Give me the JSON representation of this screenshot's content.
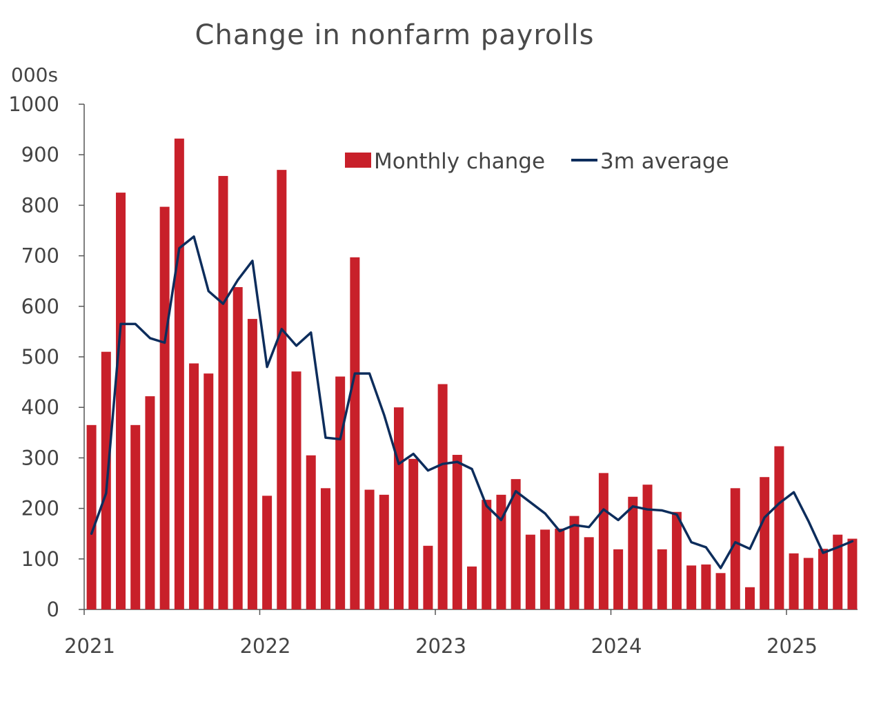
{
  "chart_data": {
    "type": "bar",
    "title": "Change in nonfarm payrolls",
    "unit_label": "000s",
    "ylim": [
      0,
      1000
    ],
    "y_ticks": [
      0,
      100,
      200,
      300,
      400,
      500,
      600,
      700,
      800,
      900,
      1000
    ],
    "x_ticks": [
      "2021",
      "2022",
      "2023",
      "2024",
      "2025"
    ],
    "legend": {
      "placement": "top-right",
      "entries": [
        "Monthly change",
        "3m average"
      ]
    },
    "colors": {
      "bars": "#c8202a",
      "line": "#0d2d5c",
      "axis": "#555555"
    },
    "start_period": "2021-01",
    "categories": [
      "2021-01",
      "2021-02",
      "2021-03",
      "2021-04",
      "2021-05",
      "2021-06",
      "2021-07",
      "2021-08",
      "2021-09",
      "2021-10",
      "2021-11",
      "2021-12",
      "2022-01",
      "2022-02",
      "2022-03",
      "2022-04",
      "2022-05",
      "2022-06",
      "2022-07",
      "2022-08",
      "2022-09",
      "2022-10",
      "2022-11",
      "2022-12",
      "2023-01",
      "2023-02",
      "2023-03",
      "2023-04",
      "2023-05",
      "2023-06",
      "2023-07",
      "2023-08",
      "2023-09",
      "2023-10",
      "2023-11",
      "2023-12",
      "2024-01",
      "2024-02",
      "2024-03",
      "2024-04",
      "2024-05",
      "2024-06",
      "2024-07",
      "2024-08",
      "2024-09",
      "2024-10",
      "2024-11",
      "2024-12",
      "2025-01",
      "2025-02",
      "2025-03",
      "2025-04",
      "2025-05"
    ],
    "series": [
      {
        "name": "Monthly change",
        "kind": "bar",
        "values": [
          365,
          510,
          825,
          365,
          422,
          797,
          932,
          487,
          467,
          858,
          638,
          575,
          225,
          870,
          471,
          305,
          240,
          461,
          697,
          237,
          227,
          400,
          298,
          126,
          446,
          306,
          85,
          217,
          227,
          258,
          148,
          158,
          160,
          185,
          143,
          270,
          119,
          223,
          247,
          119,
          193,
          87,
          89,
          72,
          240,
          44,
          262,
          323,
          111,
          102,
          120,
          148,
          140
        ]
      },
      {
        "name": "3m average",
        "kind": "line",
        "values": [
          150,
          230,
          565,
          565,
          537,
          528,
          715,
          738,
          630,
          605,
          652,
          690,
          480,
          555,
          522,
          548,
          340,
          337,
          467,
          467,
          385,
          288,
          308,
          275,
          288,
          292,
          278,
          205,
          177,
          234,
          212,
          190,
          155,
          167,
          163,
          198,
          177,
          204,
          198,
          196,
          188,
          133,
          123,
          82,
          133,
          120,
          182,
          210,
          232,
          175,
          112,
          123,
          135
        ]
      }
    ]
  }
}
